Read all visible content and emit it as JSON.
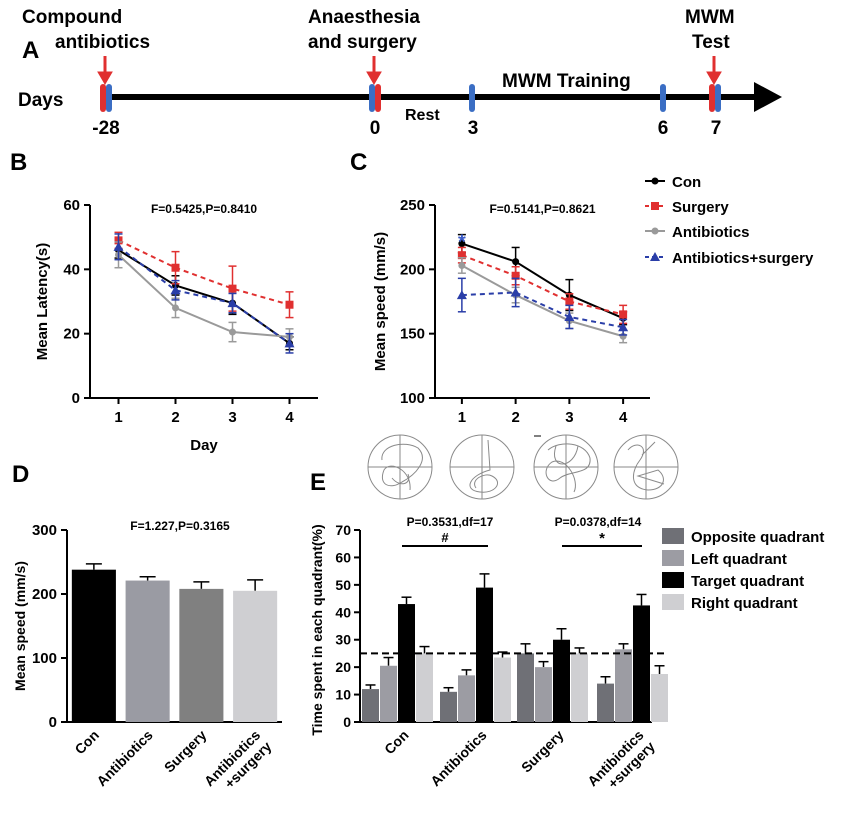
{
  "panels": {
    "A": "A",
    "B": "B",
    "C": "C",
    "D": "D",
    "E": "E"
  },
  "timeline": {
    "days_label": "Days",
    "events": [
      "Compound",
      "antibiotics",
      "Anaesthesia",
      "and surgery",
      "MWM",
      "Test"
    ],
    "training_label": "MWM Training",
    "rest_label": "Rest",
    "ticks": [
      "-28",
      "0",
      "3",
      "6",
      "7"
    ],
    "colors": {
      "red_marker": "#e03030",
      "blue_marker": "#3b6ec4",
      "arrow": "#e03030"
    }
  },
  "legend_bc": [
    "Con",
    "Surgery",
    "Antibiotics",
    "Antibiotics+surgery"
  ],
  "legend_e": [
    "Opposite quadrant",
    "Left quadrant",
    "Target quadrant",
    "Right quadrant"
  ],
  "chart_data": [
    {
      "panel": "B",
      "type": "line",
      "title": "F=0.5425,P=0.8410",
      "xlabel": "Day",
      "ylabel": "Mean Latency(s)",
      "x": [
        1,
        2,
        3,
        4
      ],
      "xlim": [
        0.5,
        4.5
      ],
      "ylim": [
        0,
        60
      ],
      "yticks": [
        0,
        20,
        40,
        60
      ],
      "series": [
        {
          "name": "Con",
          "color": "#000000",
          "dash": false,
          "marker": "circle",
          "values": [
            46,
            35,
            29.5,
            17
          ],
          "err": [
            2.5,
            3,
            3.5,
            2
          ]
        },
        {
          "name": "Surgery",
          "color": "#e03030",
          "dash": true,
          "marker": "square",
          "values": [
            49,
            40.5,
            34,
            29
          ],
          "err": [
            2.5,
            5,
            7,
            4
          ]
        },
        {
          "name": "Antibiotics",
          "color": "#9a9a9a",
          "dash": false,
          "marker": "circle",
          "values": [
            44.5,
            28,
            20.5,
            19
          ],
          "err": [
            4,
            3,
            3,
            2.5
          ]
        },
        {
          "name": "Antibiotics+surgery",
          "color": "#2a3ea8",
          "dash": true,
          "marker": "triangle",
          "values": [
            47,
            33.5,
            29.5,
            17
          ],
          "err": [
            4,
            3,
            3,
            3
          ]
        }
      ]
    },
    {
      "panel": "C",
      "type": "line",
      "title": "F=0.5141,P=0.8621",
      "xlabel": "",
      "ylabel": "Mean speed (mm/s)",
      "x": [
        1,
        2,
        3,
        4
      ],
      "xlim": [
        0.5,
        4.5
      ],
      "ylim": [
        100,
        250
      ],
      "yticks": [
        100,
        150,
        200,
        250
      ],
      "annotation": "*",
      "series": [
        {
          "name": "Con",
          "color": "#000000",
          "dash": false,
          "marker": "circle",
          "values": [
            220,
            206,
            180,
            162
          ],
          "err": [
            7,
            11,
            12,
            5
          ]
        },
        {
          "name": "Surgery",
          "color": "#e03030",
          "dash": true,
          "marker": "square",
          "values": [
            211,
            195,
            175,
            165
          ],
          "err": [
            6,
            7,
            6,
            7
          ]
        },
        {
          "name": "Antibiotics",
          "color": "#9a9a9a",
          "dash": false,
          "marker": "circle",
          "values": [
            203,
            180,
            160,
            148
          ],
          "err": [
            6,
            6,
            6,
            5
          ]
        },
        {
          "name": "Antibiotics+surgery",
          "color": "#2a3ea8",
          "dash": true,
          "marker": "triangle",
          "values": [
            180,
            182,
            163,
            155
          ],
          "err": [
            13,
            11,
            9,
            6
          ]
        }
      ]
    },
    {
      "panel": "D",
      "type": "bar",
      "title": "F=1.227,P=0.3165",
      "ylabel": "Mean speed (mm/s)",
      "categories": [
        "Con",
        "Antibiotics",
        "Surgery",
        "Antibiotics +surgery"
      ],
      "values": [
        238,
        221,
        208,
        205
      ],
      "err": [
        9,
        6,
        11,
        17
      ],
      "colors": [
        "#000000",
        "#9a9ba3",
        "#808080",
        "#cfcfd2"
      ],
      "ylim": [
        0,
        300
      ],
      "yticks": [
        0,
        100,
        200,
        300
      ]
    },
    {
      "panel": "E",
      "type": "bar",
      "ylabel": "Time spent in each quadrant(%)",
      "categories": [
        "Con",
        "Antibiotics",
        "Surgery",
        "Antibiotics +surgery"
      ],
      "series": [
        {
          "name": "Opposite quadrant",
          "color": "#6f7076",
          "values": [
            12,
            11,
            25,
            14
          ],
          "err": [
            1.5,
            1.5,
            3.5,
            2.5
          ]
        },
        {
          "name": "Left quadrant",
          "color": "#9c9ca3",
          "values": [
            20.5,
            17,
            20,
            26.5
          ],
          "err": [
            3,
            2,
            2,
            2
          ]
        },
        {
          "name": "Target quadrant",
          "color": "#000000",
          "values": [
            43,
            49,
            30,
            42.5
          ],
          "err": [
            2.5,
            5,
            4,
            4
          ]
        },
        {
          "name": "Right quadrant",
          "color": "#cfcfd2",
          "values": [
            25,
            23.5,
            25,
            17.5
          ],
          "err": [
            2.5,
            2,
            2,
            3
          ]
        }
      ],
      "ylim": [
        0,
        70
      ],
      "yticks": [
        0,
        10,
        20,
        30,
        40,
        50,
        60,
        70
      ],
      "reference_line": 25,
      "annotations": [
        {
          "text": "P=0.3531,df=17",
          "mark": "#"
        },
        {
          "text": "P=0.0378,df=14",
          "mark": "*"
        }
      ]
    }
  ]
}
